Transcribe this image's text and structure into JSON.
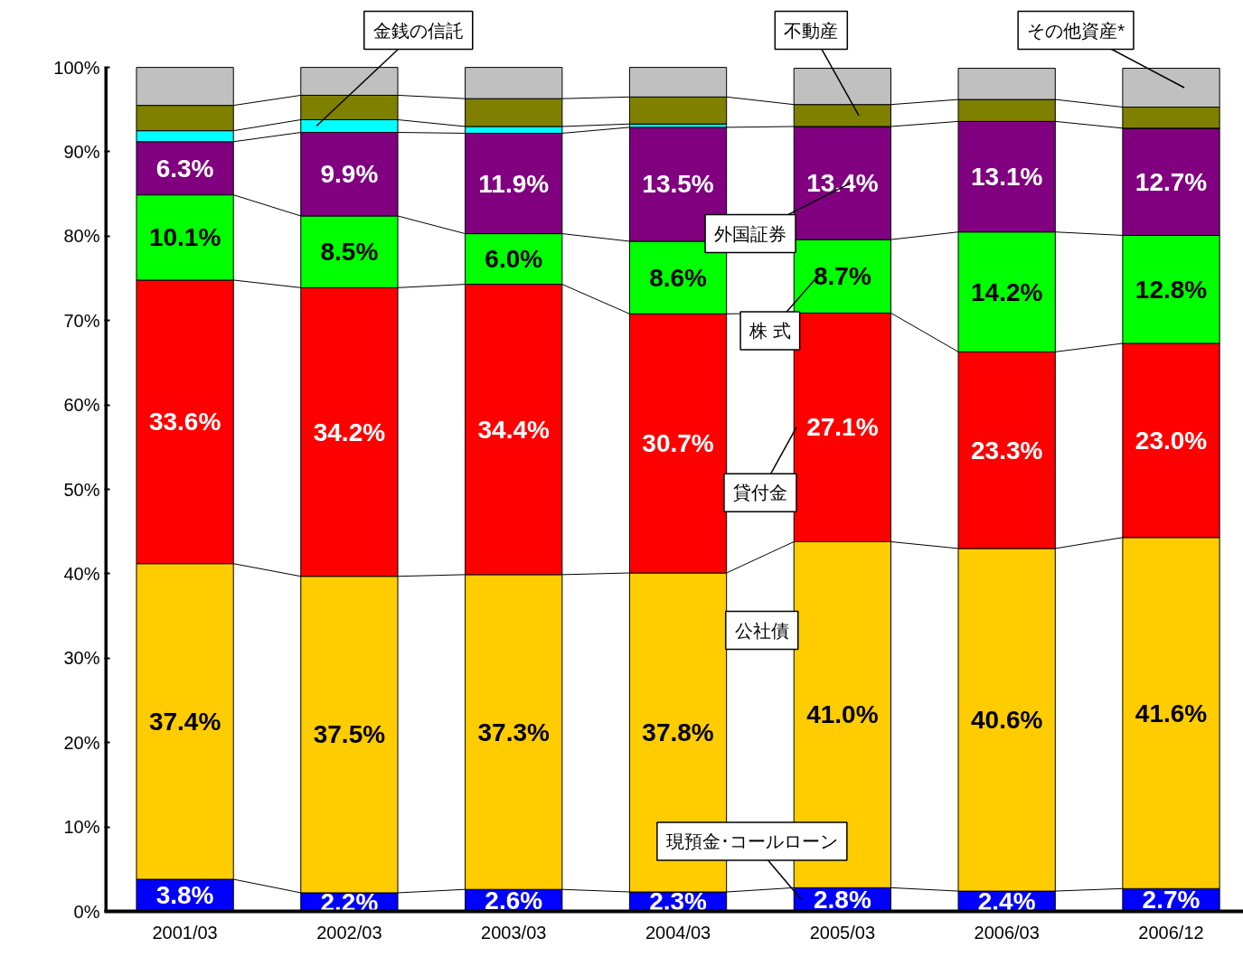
{
  "chart_data": {
    "type": "bar",
    "stacked": true,
    "categories": [
      "2001/03",
      "2002/03",
      "2003/03",
      "2004/03",
      "2005/03",
      "2006/03",
      "2006/12"
    ],
    "ylim": [
      0,
      100
    ],
    "yticks": [
      {
        "value": 0,
        "label": "0%"
      },
      {
        "value": 10,
        "label": "10%"
      },
      {
        "value": 20,
        "label": "20%"
      },
      {
        "value": 30,
        "label": "30%"
      },
      {
        "value": 40,
        "label": "40%"
      },
      {
        "value": 50,
        "label": "50%"
      },
      {
        "value": 60,
        "label": "60%"
      },
      {
        "value": 70,
        "label": "70%"
      },
      {
        "value": 80,
        "label": "80%"
      },
      {
        "value": 90,
        "label": "90%"
      },
      {
        "value": 100,
        "label": "100%"
      }
    ],
    "grid": false,
    "series": [
      {
        "name": "現預金･コールローン",
        "color": "#0000ff",
        "values": [
          3.8,
          2.2,
          2.6,
          2.3,
          2.8,
          2.4,
          2.7
        ],
        "value_labels": [
          "3.8%",
          "2.2%",
          "2.6%",
          "2.3%",
          "2.8%",
          "2.4%",
          "2.7%"
        ]
      },
      {
        "name": "公社債",
        "color": "#ffcc00",
        "values": [
          37.4,
          37.5,
          37.3,
          37.8,
          41.0,
          40.6,
          41.6
        ],
        "value_labels": [
          "37.4%",
          "37.5%",
          "37.3%",
          "37.8%",
          "41.0%",
          "40.6%",
          "41.6%"
        ]
      },
      {
        "name": "貸付金",
        "color": "#ff0000",
        "values": [
          33.6,
          34.2,
          34.4,
          30.7,
          27.1,
          23.3,
          23.0
        ],
        "value_labels": [
          "33.6%",
          "34.2%",
          "34.4%",
          "30.7%",
          "27.1%",
          "23.3%",
          "23.0%"
        ]
      },
      {
        "name": "株 式",
        "color": "#00ff00",
        "values": [
          10.1,
          8.5,
          6.0,
          8.6,
          8.7,
          14.2,
          12.8
        ],
        "value_labels": [
          "10.1%",
          "8.5%",
          "6.0%",
          "8.6%",
          "8.7%",
          "14.2%",
          "12.8%"
        ]
      },
      {
        "name": "外国証券",
        "color": "#800080",
        "values": [
          6.3,
          9.9,
          11.9,
          13.5,
          13.4,
          13.1,
          12.7
        ],
        "value_labels": [
          "6.3%",
          "9.9%",
          "11.9%",
          "13.5%",
          "13.4%",
          "13.1%",
          "12.7%"
        ]
      },
      {
        "name": "金銭の信託",
        "color": "#00ffff",
        "values": [
          1.3,
          1.5,
          0.8,
          0.4,
          null,
          null,
          null
        ]
      },
      {
        "name": "不動産",
        "color": "#808000",
        "values": [
          3.0,
          2.9,
          3.3,
          3.2,
          2.6,
          2.6,
          2.5
        ]
      },
      {
        "name": "その他資産*",
        "color": "#c0c0c0",
        "values": [
          4.5,
          3.3,
          3.7,
          3.5,
          4.3,
          3.7,
          4.6
        ]
      }
    ]
  }
}
